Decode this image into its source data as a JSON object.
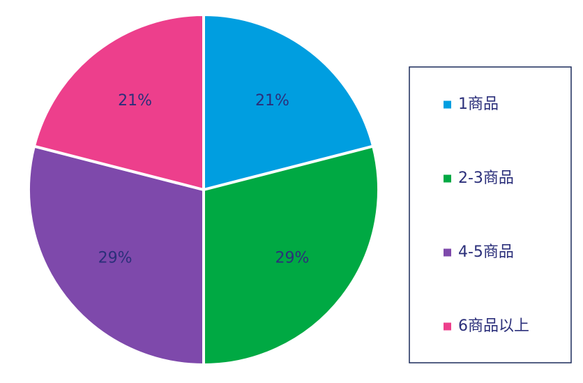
{
  "chart_data": {
    "type": "pie",
    "categories": [
      "1商品",
      "2-3商品",
      "4-5商品",
      "6商品以上"
    ],
    "values": [
      21,
      29,
      29,
      21
    ],
    "value_labels": [
      "21%",
      "29%",
      "29%",
      "21%"
    ],
    "colors": [
      "#009ee0",
      "#00a943",
      "#7e49ab",
      "#ed3f8c"
    ],
    "label_color": "#2b2f7a",
    "legend_placement": "right",
    "start_angle": "12 o'clock, clockwise"
  }
}
